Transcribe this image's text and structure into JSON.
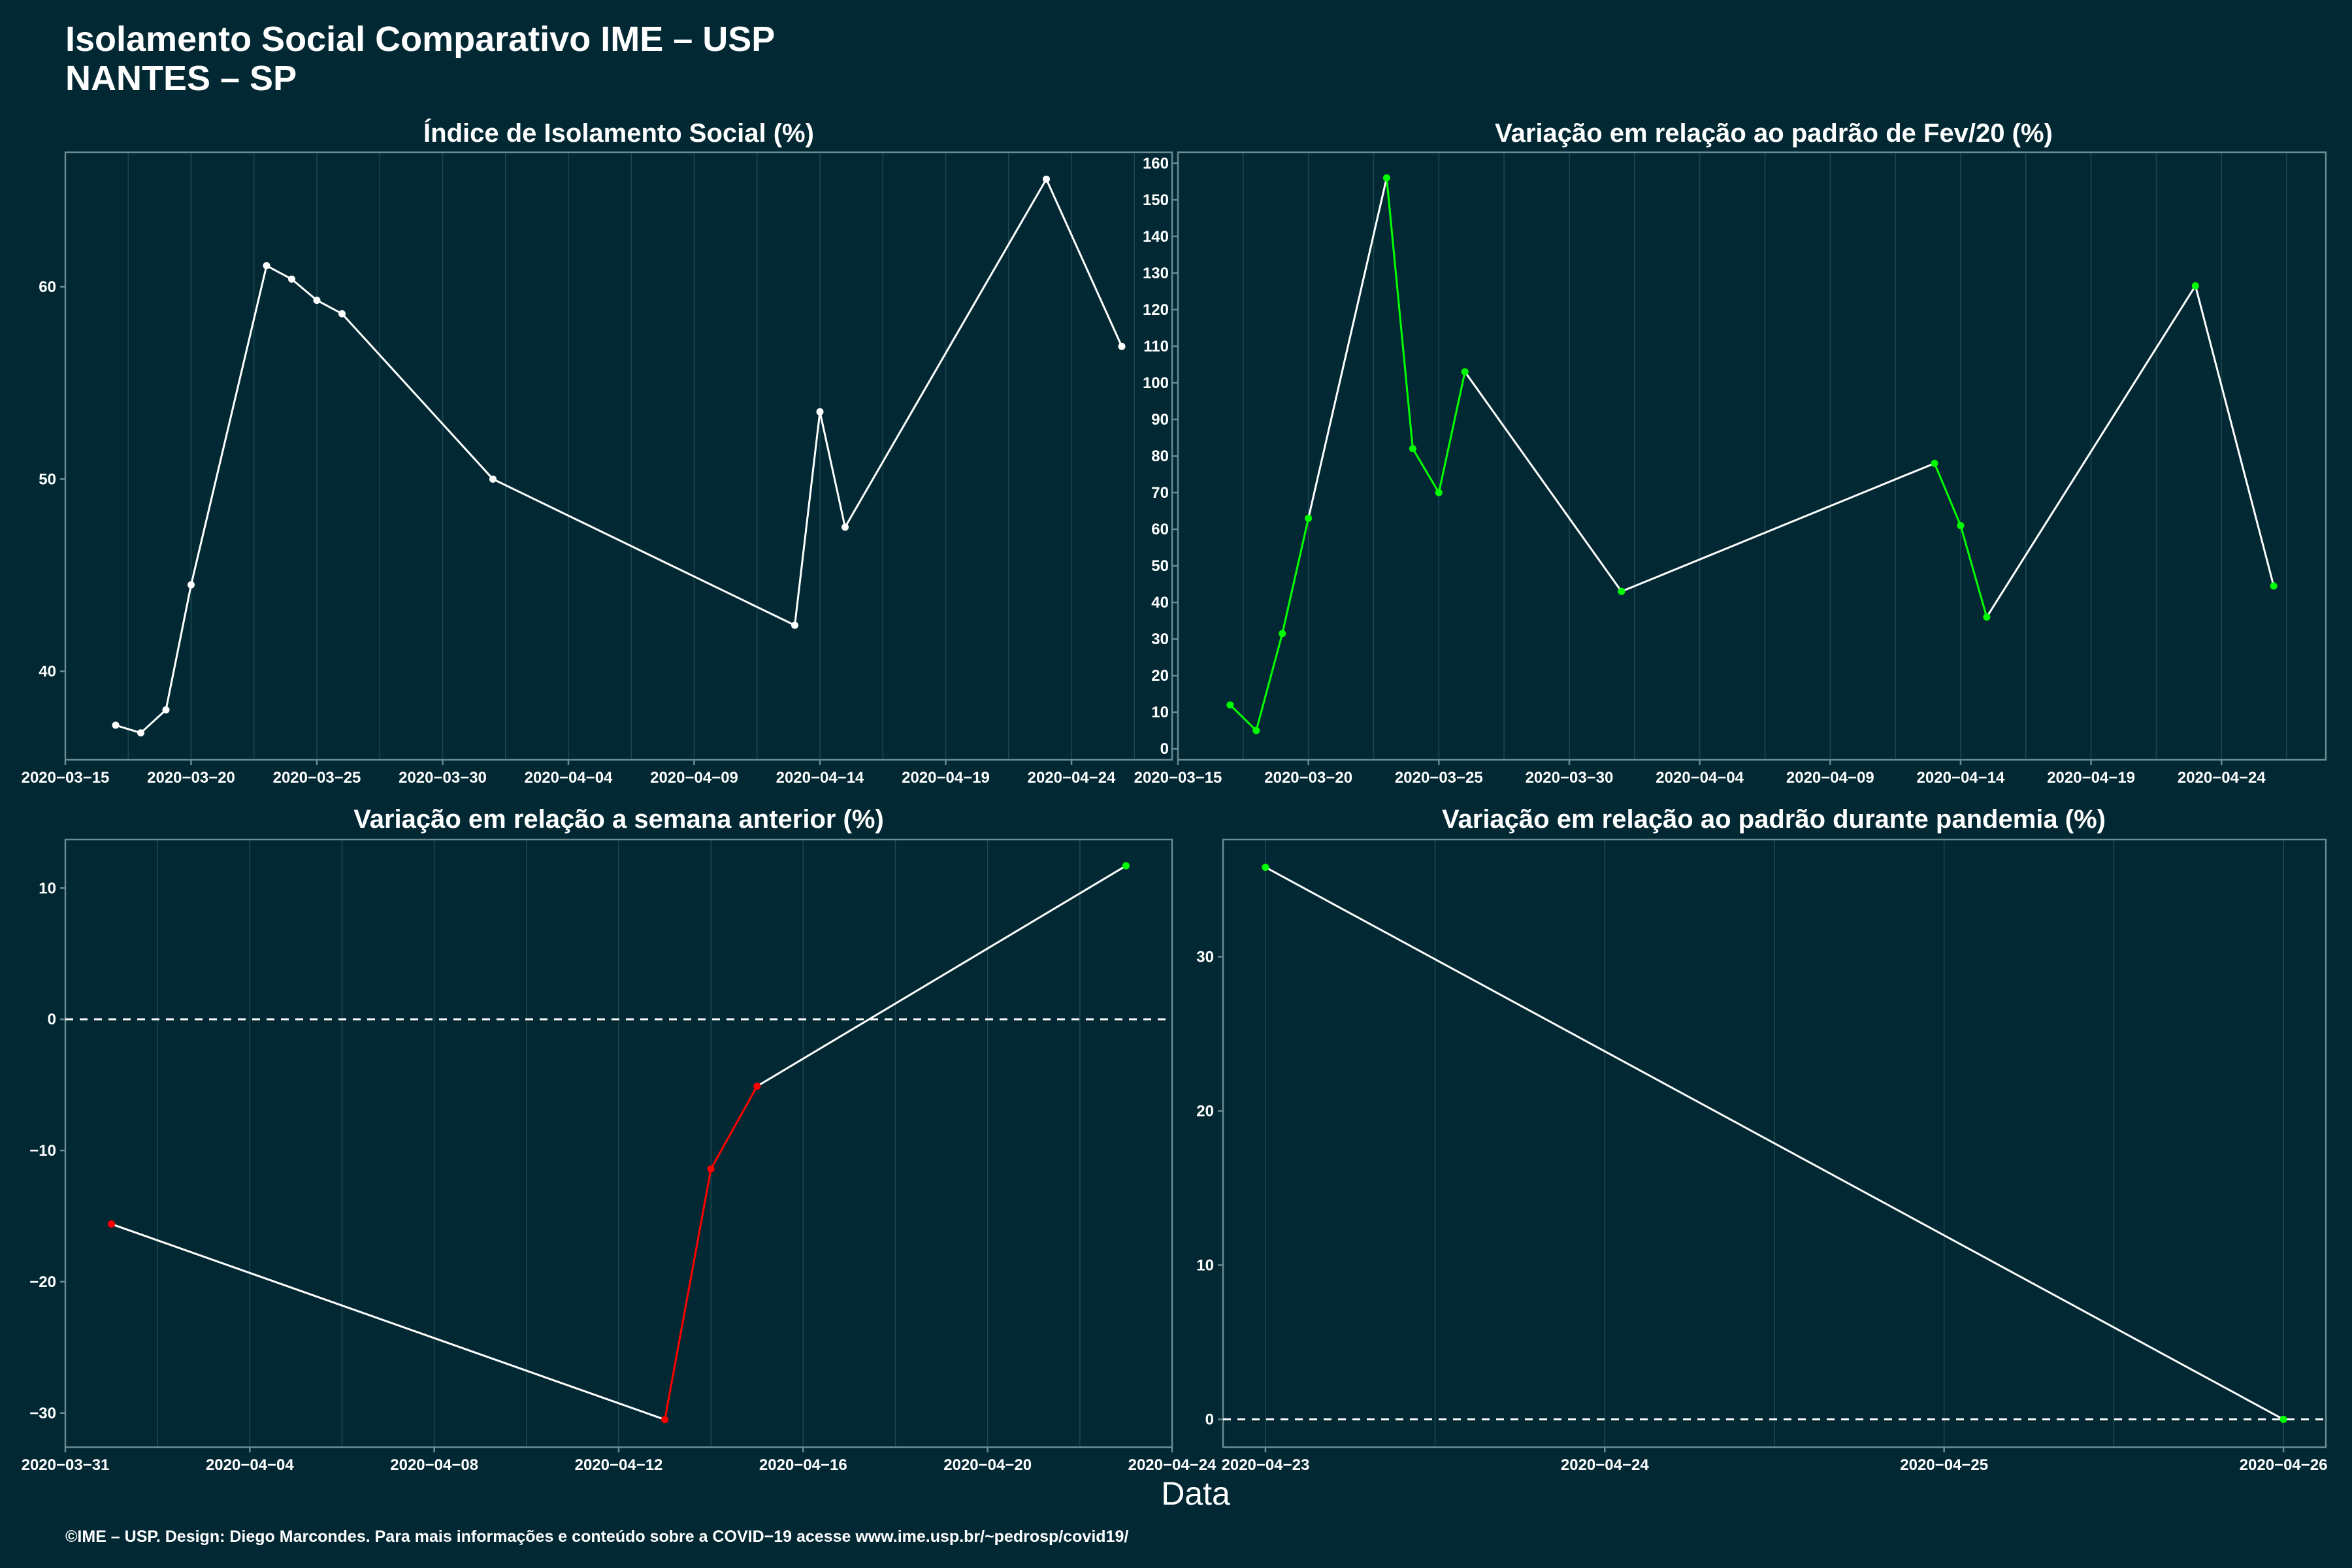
{
  "header": {
    "title_line1": "Isolamento Social Comparativo IME – USP",
    "title_line2": "NANTES – SP"
  },
  "xlabel": "Data",
  "caption": "©IME – USP. Design: Diego Marcondes. Para mais informações e conteúdo sobre a COVID−19 acesse www.ime.usp.br/~pedrosp/covid19/",
  "colors": {
    "background": "#022933",
    "panel_border": "#6b8a92",
    "grid": "#1d4650",
    "line_white": "#ffffff",
    "increase_green": "#00ff00",
    "decrease_red": "#ff0000"
  },
  "chart_data": [
    {
      "type": "line",
      "title": "Índice de Isolamento Social (%)",
      "xlabel": "",
      "ylabel": "",
      "x_type": "date",
      "xlim": [
        "2020-03-15",
        "2020-04-28"
      ],
      "ylim": [
        35.4,
        67.0
      ],
      "x_ticks": [
        "2020-03-15",
        "2020-03-20",
        "2020-03-25",
        "2020-03-30",
        "2020-04-04",
        "2020-04-09",
        "2020-04-14",
        "2020-04-19",
        "2020-04-24"
      ],
      "x_tick_labels": [
        "2020−03−15",
        "2020−03−20",
        "2020−03−25",
        "2020−03−30",
        "2020−04−04",
        "2020−04−09",
        "2020−04−14",
        "2020−04−19",
        "2020−04−24"
      ],
      "y_ticks": [
        40,
        50,
        60
      ],
      "y_tick_labels": [
        "40",
        "50",
        "60"
      ],
      "grid": true,
      "point_color": "#ffffff",
      "segment_colors": false,
      "series": [
        {
          "x": [
            "2020-03-17",
            "2020-03-18",
            "2020-03-19",
            "2020-03-20",
            "2020-03-23",
            "2020-03-24",
            "2020-03-25",
            "2020-03-26",
            "2020-04-01",
            "2020-04-13",
            "2020-04-14",
            "2020-04-15",
            "2020-04-23",
            "2020-04-26"
          ],
          "values": [
            37.2,
            36.8,
            38.0,
            44.5,
            61.1,
            60.4,
            59.3,
            58.6,
            50.0,
            42.4,
            53.5,
            47.5,
            65.6,
            56.9
          ]
        }
      ]
    },
    {
      "type": "line",
      "title": "Variação em relação ao padrão de Fev/20 (%)",
      "xlabel": "",
      "ylabel": "",
      "x_type": "date",
      "xlim": [
        "2020-03-15",
        "2020-04-28"
      ],
      "ylim": [
        -3,
        163
      ],
      "x_ticks": [
        "2020-03-15",
        "2020-03-20",
        "2020-03-25",
        "2020-03-30",
        "2020-04-04",
        "2020-04-09",
        "2020-04-14",
        "2020-04-19",
        "2020-04-24"
      ],
      "x_tick_labels": [
        "2020−03−15",
        "2020−03−20",
        "2020−03−25",
        "2020−03−30",
        "2020−04−04",
        "2020−04−09",
        "2020−04−14",
        "2020−04−19",
        "2020−04−24"
      ],
      "y_ticks": [
        0,
        10,
        20,
        30,
        40,
        50,
        60,
        70,
        80,
        90,
        100,
        110,
        120,
        130,
        140,
        150,
        160
      ],
      "y_tick_labels": [
        "0",
        "10",
        "20",
        "30",
        "40",
        "50",
        "60",
        "70",
        "80",
        "90",
        "100",
        "110",
        "120",
        "130",
        "140",
        "150",
        "160"
      ],
      "grid": true,
      "point_color": "#00ff00",
      "segment_colors": [
        "#00ff00",
        "#00ff00",
        "#00ff00",
        "#ffffff",
        "#00ff00",
        "#00ff00",
        "#00ff00",
        "#ffffff",
        "#ffffff",
        "#00ff00",
        "#00ff00",
        "#ffffff",
        "#ffffff"
      ],
      "series": [
        {
          "x": [
            "2020-03-17",
            "2020-03-18",
            "2020-03-19",
            "2020-03-20",
            "2020-03-23",
            "2020-03-24",
            "2020-03-25",
            "2020-03-26",
            "2020-04-01",
            "2020-04-13",
            "2020-04-14",
            "2020-04-15",
            "2020-04-23",
            "2020-04-26"
          ],
          "values": [
            12,
            5,
            31.5,
            63,
            156,
            82,
            70,
            103,
            43,
            78,
            61,
            36,
            126.5,
            44.5
          ]
        }
      ]
    },
    {
      "type": "line",
      "title": "Variação em relação a semana anterior (%)",
      "xlabel": "",
      "ylabel": "",
      "x_type": "date",
      "xlim": [
        "2020-03-31",
        "2020-04-24"
      ],
      "ylim": [
        -32.6,
        13.7
      ],
      "x_ticks": [
        "2020-03-31",
        "2020-04-04",
        "2020-04-08",
        "2020-04-12",
        "2020-04-16",
        "2020-04-20",
        "2020-04-24"
      ],
      "x_tick_labels": [
        "2020−03−31",
        "2020−04−04",
        "2020−04−08",
        "2020−04−12",
        "2020−04−16",
        "2020−04−20",
        "2020−04−24"
      ],
      "y_ticks": [
        -30,
        -20,
        -10,
        0,
        10
      ],
      "y_tick_labels": [
        "−30",
        "−20",
        "−10",
        "0",
        "10"
      ],
      "grid": true,
      "reference_line": 0,
      "point_color": "#ff0000",
      "segment_colors": [
        "#ffffff",
        "#ff0000",
        "#ff0000",
        "#ffffff"
      ],
      "series": [
        {
          "x": [
            "2020-04-01",
            "2020-04-13",
            "2020-04-14",
            "2020-04-15",
            "2020-04-23"
          ],
          "values": [
            -15.6,
            -30.5,
            -11.4,
            -5.1,
            11.7
          ]
        }
      ],
      "point_colors": [
        "#ff0000",
        "#ff0000",
        "#ff0000",
        "#ff0000",
        "#00ff00"
      ]
    },
    {
      "type": "line",
      "title": "Variação em relação ao padrão durante pandemia (%)",
      "xlabel": "",
      "ylabel": "",
      "x_type": "date",
      "xlim": [
        "2020-04-22T21:00",
        "2020-04-26T03:00"
      ],
      "ylim": [
        -1.8,
        37.6
      ],
      "x_ticks": [
        "2020-04-23",
        "2020-04-24",
        "2020-04-25",
        "2020-04-26"
      ],
      "x_tick_labels": [
        "2020−04−23",
        "2020−04−24",
        "2020−04−25",
        "2020−04−26"
      ],
      "y_ticks": [
        0,
        10,
        20,
        30
      ],
      "y_tick_labels": [
        "0",
        "10",
        "20",
        "30"
      ],
      "grid": true,
      "reference_line": 0,
      "point_color": "#00ff00",
      "segment_colors": [
        "#ffffff"
      ],
      "series": [
        {
          "x": [
            "2020-04-23",
            "2020-04-26"
          ],
          "values": [
            35.8,
            0
          ]
        }
      ]
    }
  ]
}
